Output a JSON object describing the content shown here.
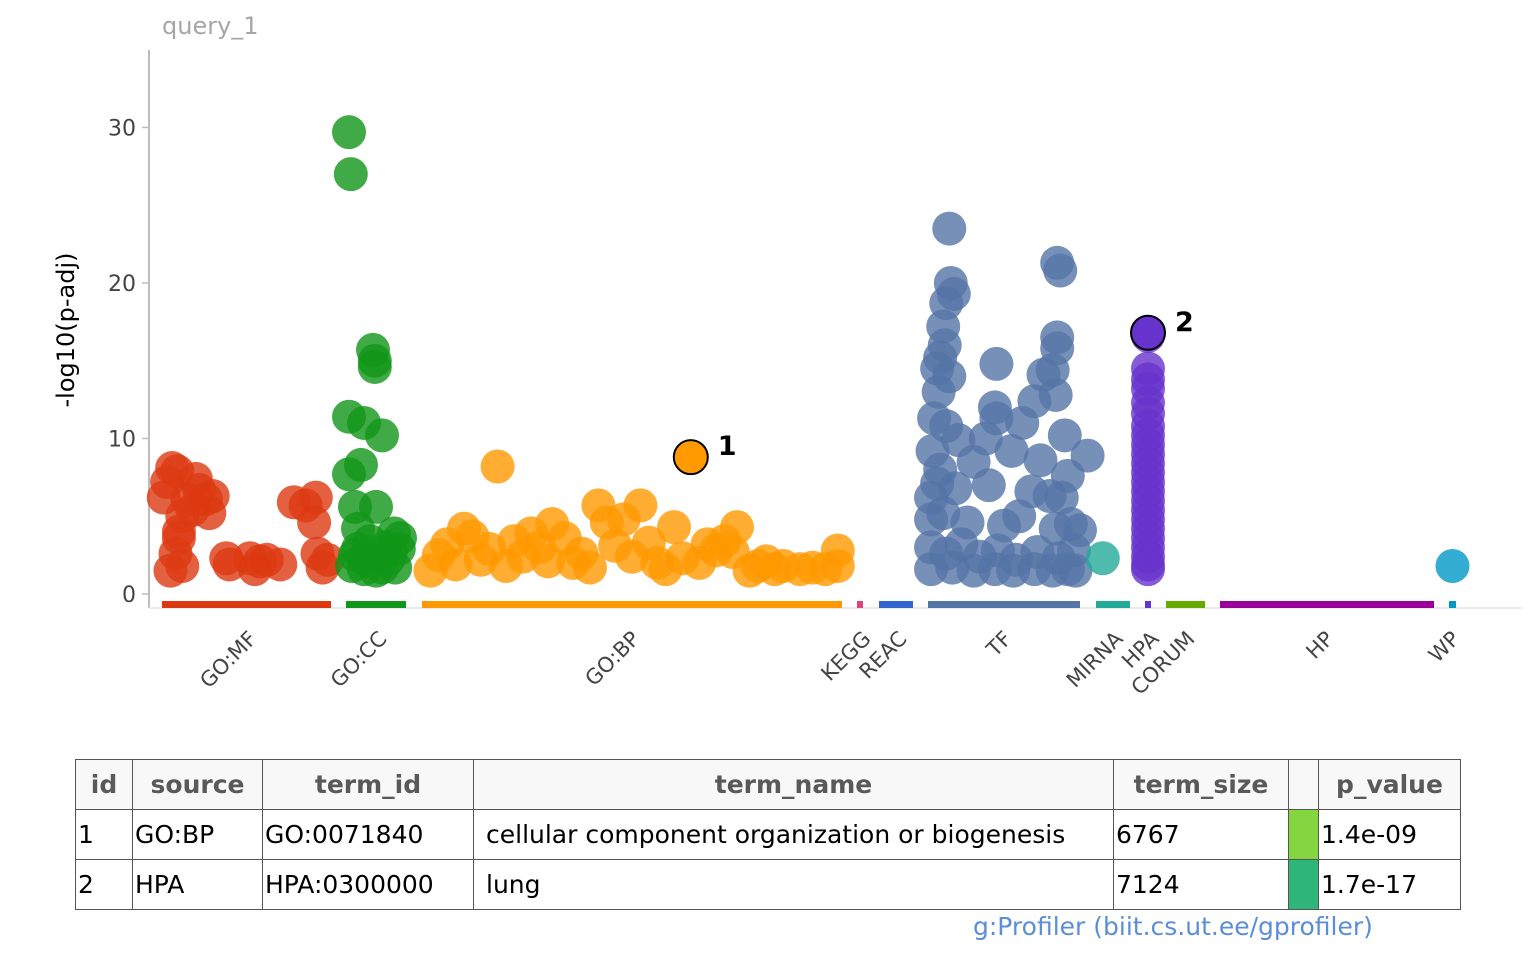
{
  "panel_title": "query_1",
  "credit": "g:Profiler (biit.cs.ut.ee/gprofiler)",
  "chart_data": {
    "type": "scatter",
    "ylabel": "-log10(p-adj)",
    "ylim": [
      0,
      35
    ],
    "yticks": [
      0,
      10,
      20,
      30
    ],
    "grid": false,
    "sources": [
      {
        "name": "GO:MF",
        "color": "#dc3912",
        "points": [
          [
            0.01,
            6.2
          ],
          [
            0.03,
            7.2
          ],
          [
            0.06,
            8.1
          ],
          [
            0.09,
            7.9
          ],
          [
            0.12,
            5.0
          ],
          [
            0.15,
            6.1
          ],
          [
            0.18,
            5.4
          ],
          [
            0.2,
            7.4
          ],
          [
            0.22,
            6.7
          ],
          [
            0.26,
            6.1
          ],
          [
            0.28,
            5.2
          ],
          [
            0.3,
            6.3
          ],
          [
            0.1,
            4.0
          ],
          [
            0.1,
            3.6
          ],
          [
            0.08,
            2.6
          ],
          [
            0.05,
            1.5
          ],
          [
            0.12,
            1.8
          ],
          [
            0.38,
            2.3
          ],
          [
            0.4,
            1.9
          ],
          [
            0.52,
            2.3
          ],
          [
            0.55,
            1.6
          ],
          [
            0.58,
            2.1
          ],
          [
            0.62,
            2.2
          ],
          [
            0.7,
            1.9
          ],
          [
            0.78,
            5.9
          ],
          [
            0.85,
            5.7
          ],
          [
            0.91,
            6.2
          ],
          [
            0.9,
            4.6
          ],
          [
            0.92,
            2.6
          ],
          [
            0.95,
            1.7
          ],
          [
            0.98,
            2.2
          ]
        ]
      },
      {
        "name": "GO:CC",
        "color": "#109618",
        "points": [
          [
            0.05,
            29.7
          ],
          [
            0.08,
            27.0
          ],
          [
            0.45,
            15.7
          ],
          [
            0.48,
            15.0
          ],
          [
            0.48,
            14.6
          ],
          [
            0.05,
            11.4
          ],
          [
            0.3,
            11.0
          ],
          [
            0.6,
            10.2
          ],
          [
            0.25,
            8.3
          ],
          [
            0.05,
            7.7
          ],
          [
            0.15,
            5.6
          ],
          [
            0.5,
            5.6
          ],
          [
            0.2,
            4.2
          ],
          [
            0.4,
            3.4
          ],
          [
            0.8,
            3.9
          ],
          [
            0.3,
            2.3
          ],
          [
            0.6,
            1.7
          ],
          [
            0.1,
            1.8
          ],
          [
            0.5,
            1.5
          ],
          [
            0.88,
            2.9
          ],
          [
            0.9,
            3.6
          ],
          [
            0.7,
            2.2
          ],
          [
            0.2,
            2.9
          ],
          [
            0.4,
            2.1
          ],
          [
            0.65,
            3.0
          ],
          [
            0.82,
            1.7
          ],
          [
            0.15,
            2.5
          ],
          [
            0.55,
            2.6
          ],
          [
            0.3,
            1.6
          ],
          [
            0.75,
            2.8
          ]
        ]
      },
      {
        "name": "GO:BP",
        "color": "#ff9900",
        "points": [
          [
            0.18,
            8.2
          ],
          [
            0.64,
            8.8
          ],
          [
            0.42,
            5.7
          ],
          [
            0.52,
            5.7
          ],
          [
            0.44,
            4.6
          ],
          [
            0.48,
            4.8
          ],
          [
            0.31,
            4.5
          ],
          [
            0.75,
            4.3
          ],
          [
            0.6,
            4.3
          ],
          [
            0.1,
            4.2
          ],
          [
            0.12,
            3.7
          ],
          [
            0.22,
            3.4
          ],
          [
            0.26,
            3.9
          ],
          [
            0.68,
            3.2
          ],
          [
            0.7,
            2.8
          ],
          [
            0.8,
            1.8
          ],
          [
            0.02,
            1.5
          ],
          [
            0.04,
            2.5
          ],
          [
            0.06,
            3.2
          ],
          [
            0.08,
            1.9
          ],
          [
            0.14,
            2.2
          ],
          [
            0.16,
            2.9
          ],
          [
            0.2,
            1.8
          ],
          [
            0.24,
            2.4
          ],
          [
            0.28,
            3.0
          ],
          [
            0.3,
            2.1
          ],
          [
            0.34,
            3.6
          ],
          [
            0.36,
            2.0
          ],
          [
            0.38,
            2.6
          ],
          [
            0.4,
            1.7
          ],
          [
            0.46,
            3.1
          ],
          [
            0.5,
            2.4
          ],
          [
            0.54,
            3.3
          ],
          [
            0.56,
            2.0
          ],
          [
            0.58,
            1.6
          ],
          [
            0.62,
            2.3
          ],
          [
            0.66,
            2.0
          ],
          [
            0.72,
            3.4
          ],
          [
            0.74,
            2.7
          ],
          [
            0.78,
            1.5
          ],
          [
            0.82,
            2.1
          ],
          [
            0.84,
            1.6
          ],
          [
            0.86,
            1.8
          ],
          [
            0.9,
            1.6
          ],
          [
            0.93,
            1.7
          ],
          [
            0.99,
            2.8
          ],
          [
            0.99,
            1.8
          ],
          [
            0.96,
            1.6
          ]
        ]
      },
      {
        "name": "KEGG",
        "color": "#dd4477",
        "points": []
      },
      {
        "name": "REAC",
        "color": "#3366cc",
        "points": []
      },
      {
        "name": "TF",
        "color": "#5574a6",
        "points": [
          [
            0.14,
            23.5
          ],
          [
            0.15,
            20.0
          ],
          [
            0.17,
            19.3
          ],
          [
            0.12,
            18.7
          ],
          [
            0.1,
            17.2
          ],
          [
            0.11,
            16.0
          ],
          [
            0.08,
            15.2
          ],
          [
            0.06,
            14.5
          ],
          [
            0.14,
            14.0
          ],
          [
            0.45,
            14.8
          ],
          [
            0.85,
            21.3
          ],
          [
            0.87,
            20.8
          ],
          [
            0.85,
            16.5
          ],
          [
            0.85,
            15.8
          ],
          [
            0.82,
            14.4
          ],
          [
            0.76,
            14.1
          ],
          [
            0.84,
            12.8
          ],
          [
            0.7,
            12.4
          ],
          [
            0.44,
            12.0
          ],
          [
            0.45,
            11.3
          ],
          [
            0.07,
            13.0
          ],
          [
            0.04,
            11.3
          ],
          [
            0.12,
            10.8
          ],
          [
            0.2,
            9.9
          ],
          [
            0.38,
            10.0
          ],
          [
            0.62,
            11.0
          ],
          [
            0.9,
            10.2
          ],
          [
            1.05,
            8.9
          ],
          [
            0.03,
            9.2
          ],
          [
            0.08,
            8.0
          ],
          [
            0.3,
            8.5
          ],
          [
            0.55,
            9.2
          ],
          [
            0.74,
            8.6
          ],
          [
            0.92,
            7.6
          ],
          [
            0.02,
            6.2
          ],
          [
            0.06,
            7.1
          ],
          [
            0.18,
            6.8
          ],
          [
            0.4,
            7.0
          ],
          [
            0.68,
            6.6
          ],
          [
            0.8,
            6.3
          ],
          [
            0.88,
            6.2
          ],
          [
            0.02,
            4.8
          ],
          [
            0.1,
            5.2
          ],
          [
            0.26,
            4.6
          ],
          [
            0.5,
            4.4
          ],
          [
            0.6,
            5.0
          ],
          [
            0.84,
            4.2
          ],
          [
            0.94,
            4.5
          ],
          [
            1.0,
            4.1
          ],
          [
            0.02,
            3.0
          ],
          [
            0.12,
            2.6
          ],
          [
            0.22,
            3.2
          ],
          [
            0.34,
            2.4
          ],
          [
            0.46,
            2.8
          ],
          [
            0.58,
            2.2
          ],
          [
            0.72,
            2.7
          ],
          [
            0.86,
            2.3
          ],
          [
            0.96,
            2.8
          ],
          [
            0.02,
            1.6
          ],
          [
            0.16,
            1.7
          ],
          [
            0.3,
            1.5
          ],
          [
            0.44,
            1.6
          ],
          [
            0.56,
            1.5
          ],
          [
            0.7,
            1.6
          ],
          [
            0.82,
            1.5
          ],
          [
            0.92,
            1.6
          ],
          [
            0.97,
            1.5
          ]
        ]
      },
      {
        "name": "MIRNA",
        "color": "#22aa99",
        "points": [
          [
            0.2,
            2.3
          ]
        ]
      },
      {
        "name": "HPA",
        "color": "#6633cc",
        "points": [
          [
            0.5,
            16.6
          ],
          [
            0.5,
            16.8
          ],
          [
            0.5,
            14.5
          ],
          [
            0.5,
            13.8
          ],
          [
            0.5,
            13.2
          ],
          [
            0.5,
            12.3
          ],
          [
            0.5,
            11.6
          ],
          [
            0.5,
            10.8
          ],
          [
            0.5,
            10.2
          ],
          [
            0.5,
            9.6
          ],
          [
            0.5,
            9.0
          ],
          [
            0.5,
            8.4
          ],
          [
            0.5,
            7.8
          ],
          [
            0.5,
            7.2
          ],
          [
            0.5,
            6.6
          ],
          [
            0.5,
            6.0
          ],
          [
            0.5,
            5.4
          ],
          [
            0.5,
            4.8
          ],
          [
            0.5,
            4.2
          ],
          [
            0.5,
            3.6
          ],
          [
            0.5,
            3.0
          ],
          [
            0.5,
            2.4
          ],
          [
            0.5,
            1.9
          ],
          [
            0.5,
            1.6
          ]
        ]
      },
      {
        "name": "CORUM",
        "color": "#66aa00",
        "points": []
      },
      {
        "name": "HP",
        "color": "#990099",
        "points": []
      },
      {
        "name": "WP",
        "color": "#0099c6",
        "points": [
          [
            0.5,
            1.8
          ]
        ]
      }
    ],
    "highlighted": [
      {
        "id": "1",
        "source": "GO:BP",
        "x": 0.64,
        "y": 8.8
      },
      {
        "id": "2",
        "source": "HPA",
        "x": 0.5,
        "y": 16.8
      }
    ]
  },
  "table": {
    "headers": [
      "id",
      "source",
      "term_id",
      "term_name",
      "term_size",
      "",
      "p_value"
    ],
    "rows": [
      {
        "id": "1",
        "source": "GO:BP",
        "term_id": "GO:0071840",
        "term_name": "cellular component organization or biogenesis",
        "term_size": "6767",
        "swatch_color": "#84d640",
        "p_value": "1.4e-09"
      },
      {
        "id": "2",
        "source": "HPA",
        "term_id": "HPA:0300000",
        "term_name": "lung",
        "term_size": "7124",
        "swatch_color": "#2db57a",
        "p_value": "1.7e-17"
      }
    ]
  }
}
